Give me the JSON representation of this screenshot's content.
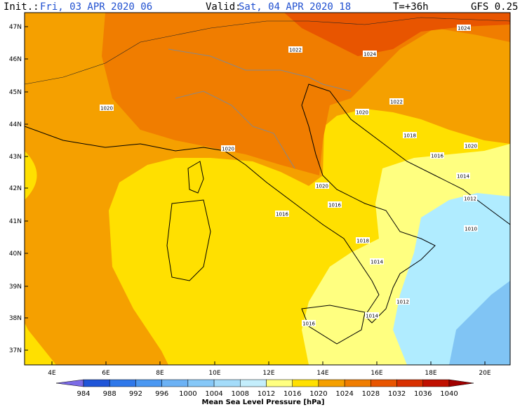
{
  "header": {
    "init_label": "Init.:",
    "init_value": "Fri, 03 APR 2020  06",
    "valid_label": "Valid:",
    "valid_value": "Sat, 04 APR 2020  18",
    "lead": "T=+36h",
    "model": "GFS 0.25"
  },
  "axes": {
    "lat": [
      "47N",
      "46N",
      "45N",
      "44N",
      "43N",
      "42N",
      "41N",
      "40N",
      "39N",
      "38N",
      "37N"
    ],
    "lon": [
      "4E",
      "6E",
      "8E",
      "10E",
      "12E",
      "14E",
      "16E",
      "18E",
      "20E"
    ]
  },
  "contour_labels": [
    "1024",
    "1022",
    "1024",
    "1020",
    "1020",
    "1022",
    "1018",
    "1020",
    "1020",
    "1016",
    "1014",
    "1020",
    "1012",
    "1016",
    "1016",
    "1010",
    "1018",
    "1014",
    "1012",
    "1016",
    "1014"
  ],
  "colorbar": {
    "ticks": [
      984,
      988,
      992,
      996,
      1000,
      1004,
      1008,
      1012,
      1016,
      1020,
      1024,
      1028,
      1032,
      1036,
      1040
    ],
    "title": "Mean Sea Level Pressure [hPa]"
  }
}
